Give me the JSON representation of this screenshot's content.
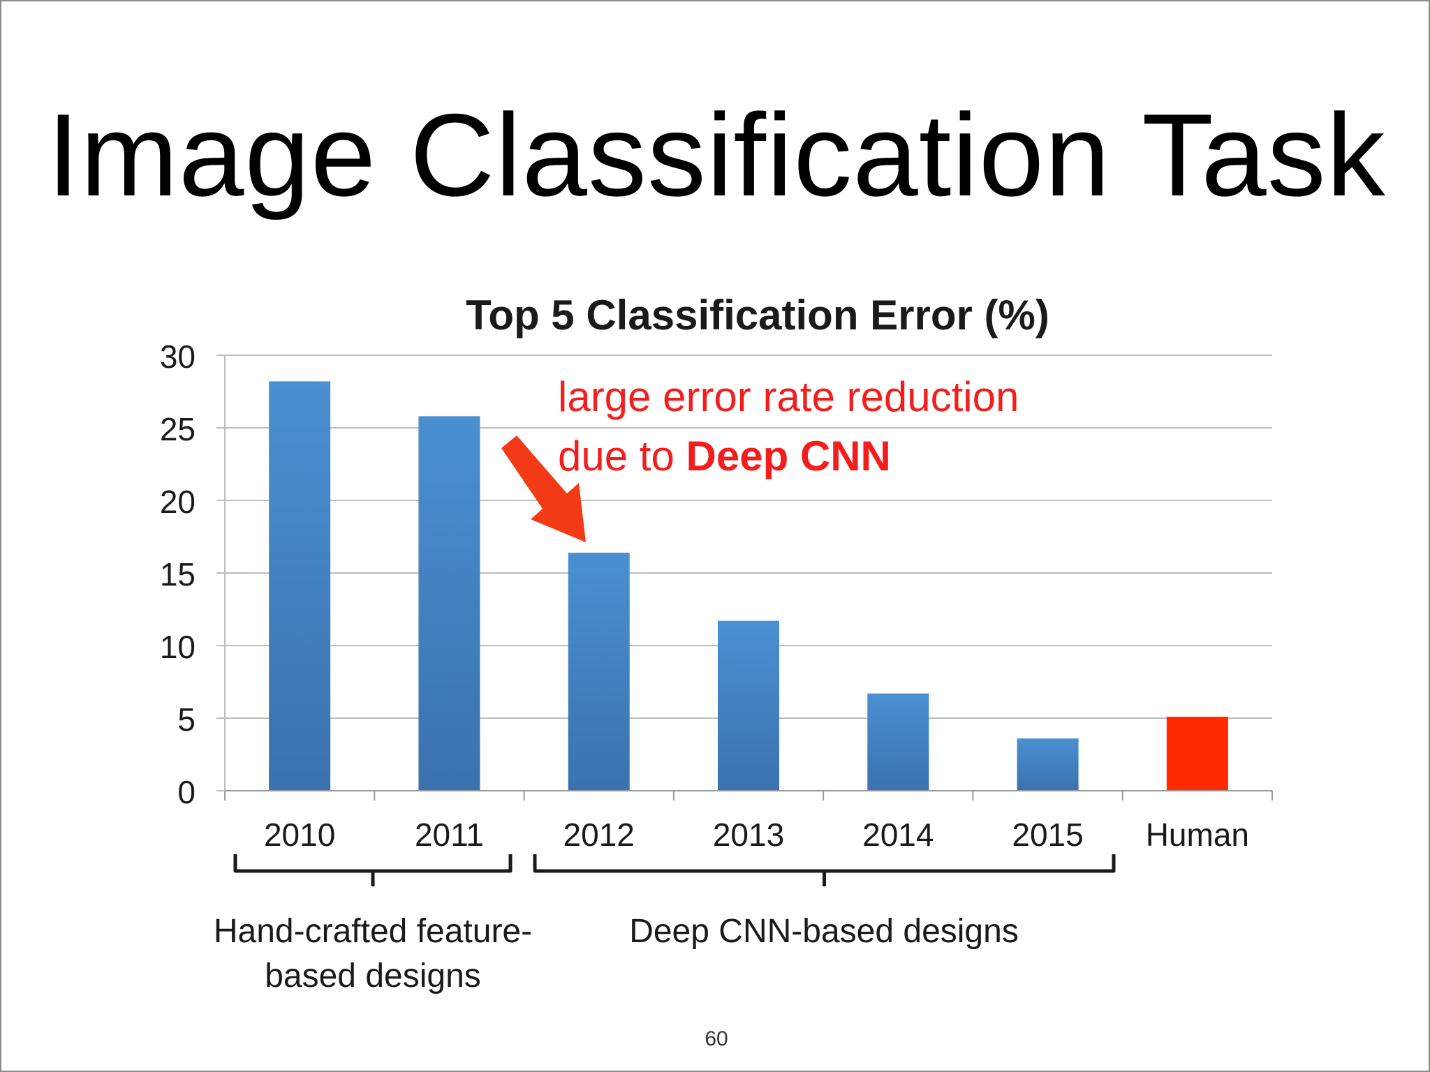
{
  "slide": {
    "title": "Image Classification Task",
    "page_number": "60"
  },
  "colors": {
    "bar": "#4A90D2",
    "bar_dark": "#3A72AE",
    "human_bar": "#FF2A00",
    "annotation": "#F21E1E",
    "arrow": "#F23A17",
    "grid": "#BDBDBD",
    "text": "#1a1a1a"
  },
  "chart_data": {
    "type": "bar",
    "title": "Top 5 Classification Error (%)",
    "xlabel": "",
    "ylabel": "",
    "categories": [
      "2010",
      "2011",
      "2012",
      "2013",
      "2014",
      "2015",
      "Human"
    ],
    "values": [
      28.2,
      25.8,
      16.4,
      11.7,
      6.7,
      3.6,
      5.1
    ],
    "highlight": [
      "blue",
      "blue",
      "blue",
      "blue",
      "blue",
      "blue",
      "red"
    ],
    "ylim": [
      0,
      30
    ],
    "yticks": [
      "0",
      "5",
      "10",
      "15",
      "20",
      "25",
      "30"
    ],
    "grid": true,
    "annotation": {
      "line1": "large error rate reduction",
      "line2_prefix": "due to ",
      "line2_bold": "Deep CNN"
    },
    "groups": [
      {
        "label_line1": "Hand-crafted feature-",
        "label_line2": "based designs",
        "categories": [
          "2010",
          "2011"
        ]
      },
      {
        "label_line1": "Deep CNN-based designs",
        "label_line2": "",
        "categories": [
          "2012",
          "2013",
          "2014",
          "2015"
        ]
      }
    ]
  }
}
